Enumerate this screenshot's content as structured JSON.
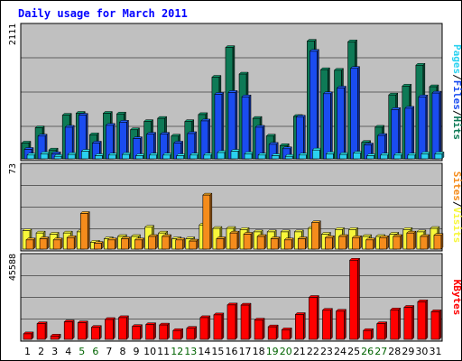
{
  "chart_data": {
    "type": "bar",
    "title": "Daily usage for March 2011",
    "categories": [
      "1",
      "2",
      "3",
      "4",
      "5",
      "6",
      "7",
      "8",
      "9",
      "10",
      "11",
      "12",
      "13",
      "14",
      "15",
      "16",
      "17",
      "18",
      "19",
      "20",
      "21",
      "22",
      "23",
      "24",
      "25",
      "26",
      "27",
      "28",
      "29",
      "30",
      "31"
    ],
    "weekend_days": [
      "5",
      "6",
      "12",
      "13",
      "19",
      "20",
      "26",
      "27"
    ],
    "colors": {
      "title": "#0000ff",
      "weekday_label": "#000000",
      "weekend_label": "#006400",
      "hits": "#0e7a56",
      "files": "#1a4cf0",
      "pages": "#2ad2f0",
      "visits": "#f7f73a",
      "sites": "#f58c1c",
      "kbytes": "#ff0000",
      "plot_bg": "#c0c0c0"
    },
    "panels": [
      {
        "id": "hits-files-pages",
        "max_label": "2111",
        "ylim": [
          0,
          2111
        ],
        "legend": [
          "Pages",
          "/",
          "Files",
          "/",
          "Hits"
        ],
        "legend_colors": [
          "#2ad2f0",
          "#000000",
          "#1a4cf0",
          "#000000",
          "#0e7a56"
        ],
        "series": [
          {
            "name": "Hits",
            "values": [
              250,
              490,
              140,
              690,
              720,
              380,
              720,
              710,
              460,
              590,
              640,
              360,
              590,
              700,
              1290,
              1760,
              1340,
              640,
              360,
              210,
              670,
              1860,
              1410,
              1400,
              1850,
              260,
              500,
              1010,
              1150,
              1480,
              1140
            ]
          },
          {
            "name": "Files",
            "values": [
              150,
              360,
              80,
              500,
              690,
              250,
              530,
              580,
              320,
              390,
              390,
              250,
              400,
              600,
              1020,
              1050,
              980,
              500,
              230,
              160,
              660,
              1700,
              1030,
              1120,
              1430,
              220,
              370,
              780,
              800,
              980,
              1040
            ]
          },
          {
            "name": "Pages",
            "values": [
              60,
              80,
              40,
              70,
              120,
              50,
              60,
              70,
              50,
              60,
              60,
              50,
              60,
              60,
              100,
              120,
              80,
              60,
              50,
              40,
              60,
              140,
              80,
              70,
              90,
              50,
              60,
              60,
              60,
              80,
              80
            ]
          }
        ]
      },
      {
        "id": "visits-sites",
        "max_label": "73",
        "ylim": [
          0,
          73
        ],
        "legend": [
          "Sites",
          "/",
          "Visits"
        ],
        "legend_colors": [
          "#f58c1c",
          "#000000",
          "#f7f73a"
        ],
        "series": [
          {
            "name": "Visits",
            "values": [
              16,
              14,
              13,
              14,
              15,
              6,
              9,
              11,
              11,
              19,
              14,
              9,
              9,
              21,
              18,
              18,
              17,
              15,
              15,
              15,
              15,
              18,
              13,
              17,
              17,
              11,
              11,
              13,
              17,
              15,
              18
            ]
          },
          {
            "name": "Sites",
            "values": [
              8,
              9,
              8,
              10,
              31,
              5,
              8,
              9,
              8,
              11,
              11,
              8,
              7,
              47,
              9,
              14,
              13,
              11,
              9,
              8,
              9,
              23,
              10,
              11,
              10,
              8,
              10,
              11,
              14,
              11,
              12
            ]
          }
        ]
      },
      {
        "id": "kbytes",
        "max_label": "45588",
        "ylim": [
          0,
          45588
        ],
        "legend": [
          "KBytes"
        ],
        "legend_colors": [
          "#ff0000"
        ],
        "series": [
          {
            "name": "KBytes",
            "values": [
              3000,
              8500,
              1800,
              9500,
              9000,
              6500,
              10800,
              11800,
              7000,
              8000,
              7800,
              4800,
              6000,
              11800,
              13300,
              18700,
              18600,
              10500,
              6800,
              5200,
              13500,
              22800,
              15800,
              15300,
              43000,
              4800,
              8500,
              16000,
              17400,
              20400,
              15000
            ]
          }
        ]
      }
    ]
  }
}
